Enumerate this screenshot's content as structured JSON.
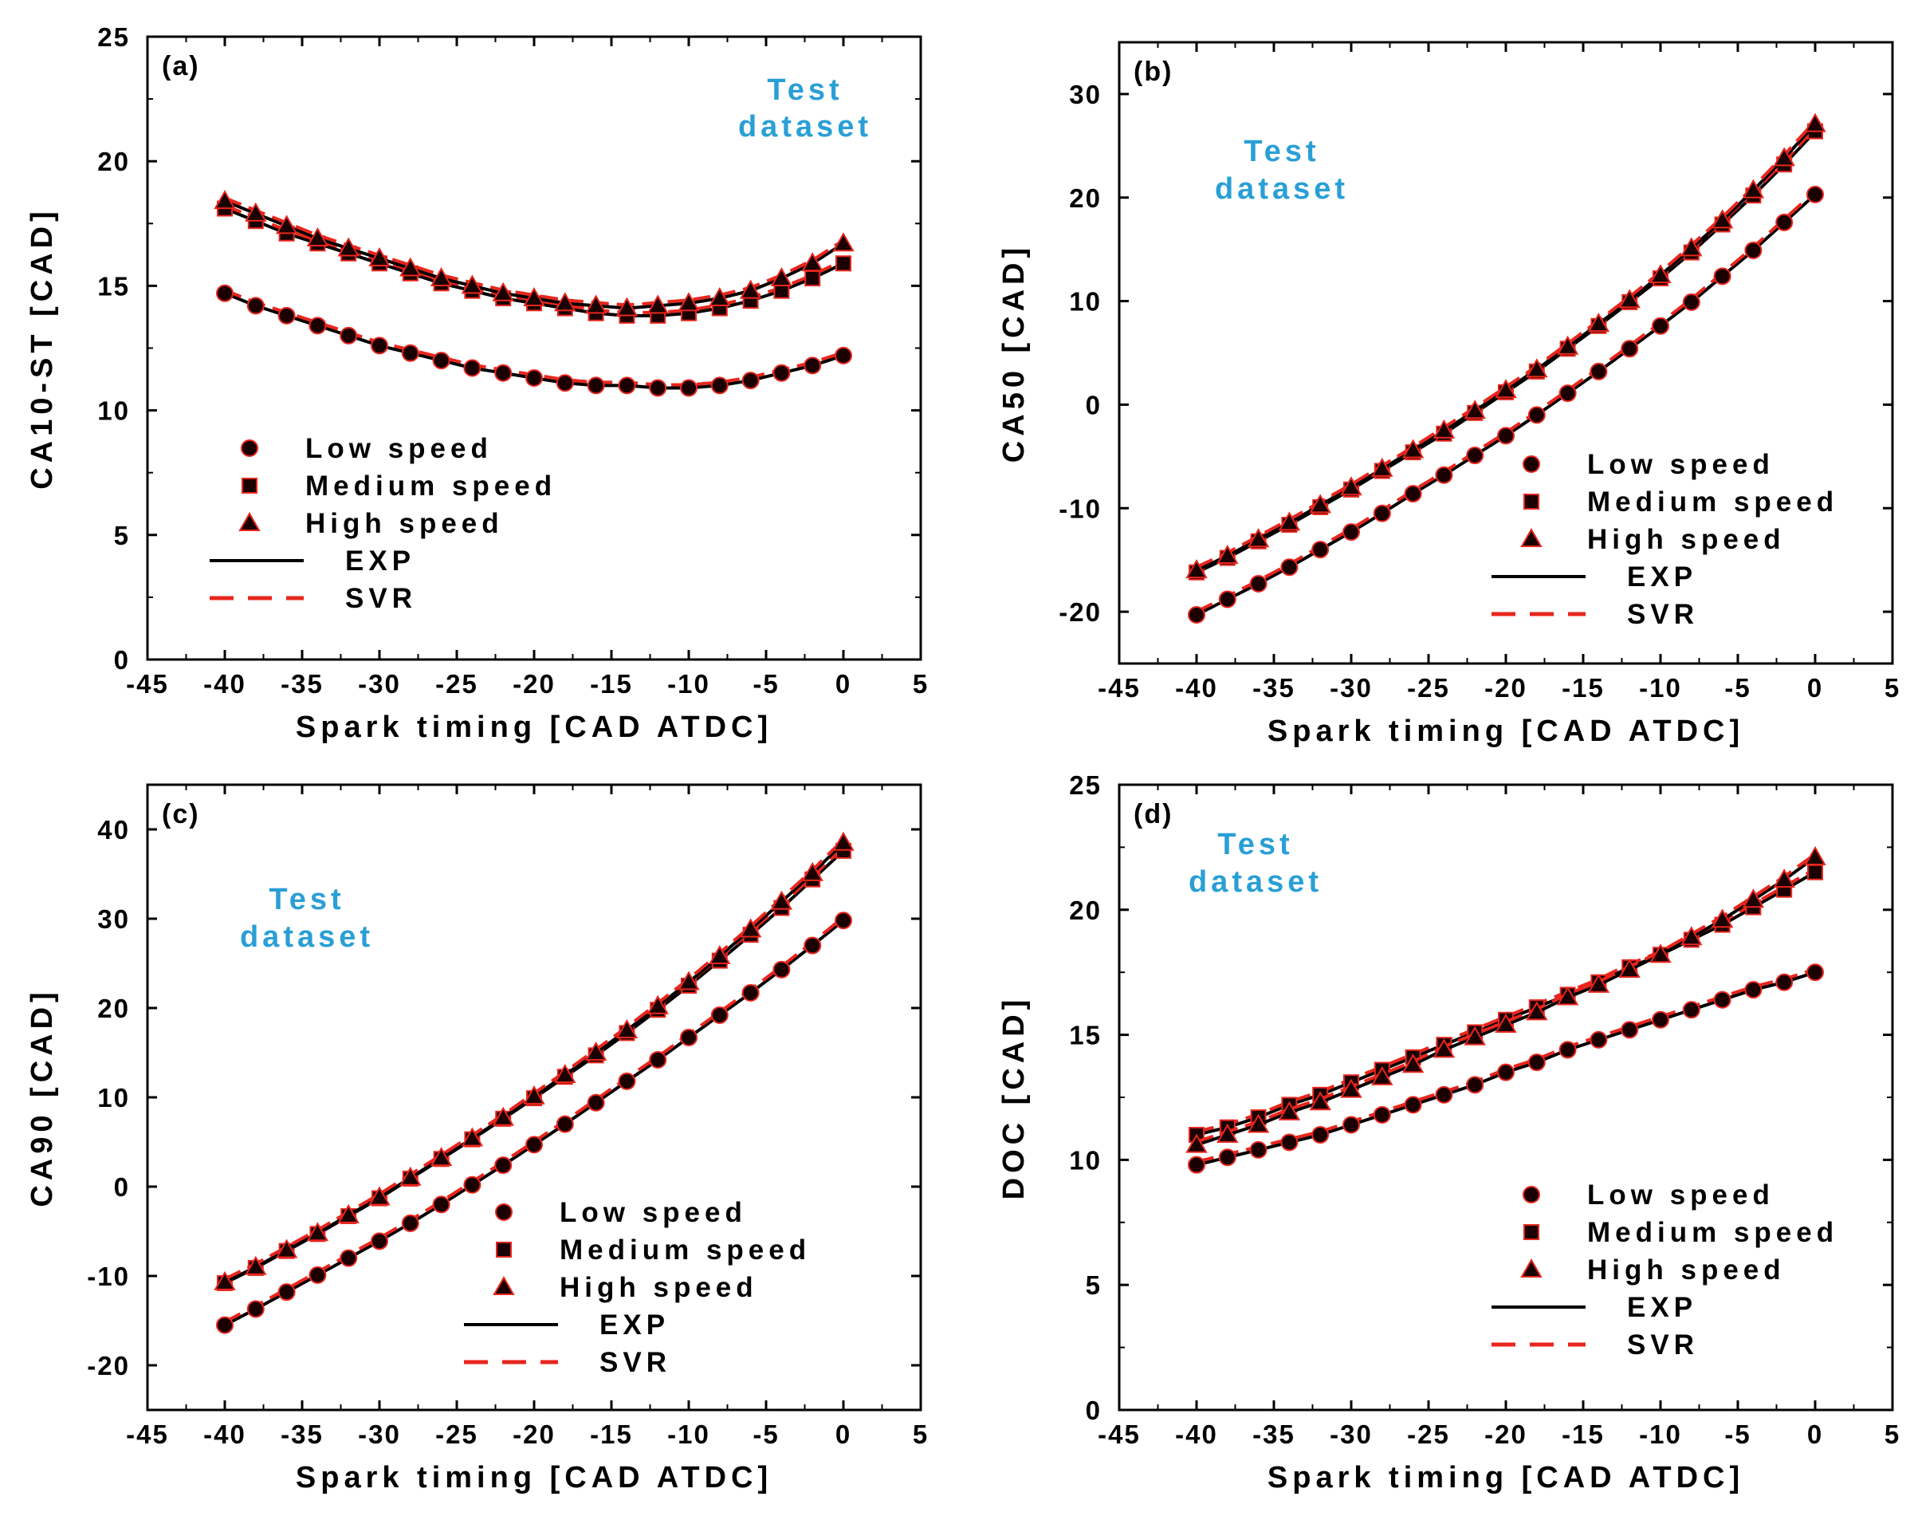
{
  "figure": {
    "legend_entries": [
      "Low speed",
      "Medium speed",
      "High speed",
      "EXP",
      "SVR"
    ],
    "colors": {
      "exp": "#000000",
      "svr": "#e8261d",
      "annotation": "#2a9fd6",
      "marker_fill": "#1a0000"
    }
  },
  "chart_data": [
    {
      "id": "a",
      "type": "line",
      "panel_label": "(a)",
      "annotation": [
        "Test",
        "dataset"
      ],
      "xlabel": "Spark timing [CAD ATDC]",
      "ylabel": "CA10-ST [CAD]",
      "xlim": [
        -45,
        5
      ],
      "ylim": [
        0,
        25
      ],
      "xticks": [
        -45,
        -40,
        -35,
        -30,
        -25,
        -20,
        -15,
        -10,
        -5,
        0,
        5
      ],
      "yticks": [
        0,
        5,
        10,
        15,
        20,
        25
      ],
      "legend_position": "lower-left",
      "x": [
        -40,
        -38,
        -36,
        -34,
        -32,
        -30,
        -28,
        -26,
        -24,
        -22,
        -20,
        -18,
        -16,
        -14,
        -12,
        -10,
        -8,
        -6,
        -4,
        -2,
        0
      ],
      "series": [
        {
          "name": "Low speed",
          "marker": "circle",
          "values": [
            14.7,
            14.2,
            13.8,
            13.4,
            13.0,
            12.6,
            12.3,
            12.0,
            11.7,
            11.5,
            11.3,
            11.1,
            11.0,
            11.0,
            10.9,
            10.9,
            11.0,
            11.2,
            11.5,
            11.8,
            12.2
          ]
        },
        {
          "name": "Medium speed",
          "marker": "square",
          "values": [
            18.1,
            17.6,
            17.1,
            16.7,
            16.3,
            15.9,
            15.5,
            15.1,
            14.8,
            14.5,
            14.3,
            14.1,
            13.9,
            13.8,
            13.8,
            13.9,
            14.1,
            14.4,
            14.8,
            15.3,
            15.9
          ]
        },
        {
          "name": "High speed",
          "marker": "triangle",
          "values": [
            18.4,
            17.9,
            17.4,
            16.9,
            16.5,
            16.1,
            15.7,
            15.3,
            15.0,
            14.7,
            14.5,
            14.3,
            14.2,
            14.1,
            14.2,
            14.3,
            14.5,
            14.8,
            15.3,
            15.9,
            16.7
          ]
        }
      ]
    },
    {
      "id": "b",
      "type": "line",
      "panel_label": "(b)",
      "annotation": [
        "Test",
        "dataset"
      ],
      "xlabel": "Spark timing [CAD ATDC]",
      "ylabel": "CA50 [CAD]",
      "xlim": [
        -45,
        5
      ],
      "ylim": [
        -25,
        35
      ],
      "xticks": [
        -45,
        -40,
        -35,
        -30,
        -25,
        -20,
        -15,
        -10,
        -5,
        0,
        5
      ],
      "yticks": [
        -20,
        -10,
        0,
        10,
        20,
        30
      ],
      "legend_position": "lower-right",
      "x": [
        -40,
        -38,
        -36,
        -34,
        -32,
        -30,
        -28,
        -26,
        -24,
        -22,
        -20,
        -18,
        -16,
        -14,
        -12,
        -10,
        -8,
        -6,
        -4,
        -2,
        0
      ],
      "series": [
        {
          "name": "Low speed",
          "marker": "circle",
          "values": [
            -20.3,
            -18.8,
            -17.3,
            -15.7,
            -14.0,
            -12.3,
            -10.5,
            -8.6,
            -6.8,
            -4.9,
            -3.0,
            -1.0,
            1.1,
            3.2,
            5.4,
            7.6,
            9.9,
            12.4,
            14.9,
            17.6,
            20.3
          ]
        },
        {
          "name": "Medium speed",
          "marker": "square",
          "values": [
            -16.2,
            -14.8,
            -13.2,
            -11.6,
            -9.9,
            -8.2,
            -6.4,
            -4.6,
            -2.8,
            -0.8,
            1.2,
            3.2,
            5.4,
            7.6,
            9.9,
            12.2,
            14.7,
            17.4,
            20.2,
            23.2,
            26.4
          ]
        },
        {
          "name": "High speed",
          "marker": "triangle",
          "values": [
            -16.0,
            -14.6,
            -13.0,
            -11.4,
            -9.7,
            -8.0,
            -6.2,
            -4.4,
            -2.5,
            -0.6,
            1.4,
            3.4,
            5.6,
            7.8,
            10.1,
            12.5,
            15.1,
            17.8,
            20.7,
            23.8,
            27.1
          ]
        }
      ]
    },
    {
      "id": "c",
      "type": "line",
      "panel_label": "(c)",
      "annotation": [
        "Test",
        "dataset"
      ],
      "xlabel": "Spark timing [CAD ATDC]",
      "ylabel": "CA90 [CAD]",
      "xlim": [
        -45,
        5
      ],
      "ylim": [
        -25,
        45
      ],
      "xticks": [
        -45,
        -40,
        -35,
        -30,
        -25,
        -20,
        -15,
        -10,
        -5,
        0,
        5
      ],
      "yticks": [
        -20,
        -10,
        0,
        10,
        20,
        30,
        40
      ],
      "legend_position": "lower-right",
      "x": [
        -40,
        -38,
        -36,
        -34,
        -32,
        -30,
        -28,
        -26,
        -24,
        -22,
        -20,
        -18,
        -16,
        -14,
        -12,
        -10,
        -8,
        -6,
        -4,
        -2,
        0
      ],
      "series": [
        {
          "name": "Low speed",
          "marker": "circle",
          "values": [
            -15.5,
            -13.7,
            -11.8,
            -9.9,
            -8.0,
            -6.1,
            -4.1,
            -2.0,
            0.2,
            2.4,
            4.7,
            7.0,
            9.4,
            11.8,
            14.2,
            16.7,
            19.2,
            21.7,
            24.3,
            27.0,
            29.8
          ]
        },
        {
          "name": "Medium speed",
          "marker": "square",
          "values": [
            -10.8,
            -9.1,
            -7.2,
            -5.3,
            -3.3,
            -1.3,
            0.9,
            3.1,
            5.3,
            7.6,
            9.9,
            12.3,
            14.7,
            17.2,
            19.8,
            22.5,
            25.3,
            28.2,
            31.2,
            34.4,
            37.6
          ]
        },
        {
          "name": "High speed",
          "marker": "triangle",
          "values": [
            -10.7,
            -9.0,
            -7.1,
            -5.2,
            -3.2,
            -1.2,
            1.0,
            3.2,
            5.4,
            7.7,
            10.1,
            12.5,
            15.0,
            17.5,
            20.2,
            22.9,
            25.8,
            28.8,
            31.9,
            35.1,
            38.5
          ]
        }
      ]
    },
    {
      "id": "d",
      "type": "line",
      "panel_label": "(d)",
      "annotation": [
        "Test",
        "dataset"
      ],
      "xlabel": "Spark timing [CAD ATDC]",
      "ylabel": "DOC [CAD]",
      "xlim": [
        -45,
        5
      ],
      "ylim": [
        0,
        25
      ],
      "xticks": [
        -45,
        -40,
        -35,
        -30,
        -25,
        -20,
        -15,
        -10,
        -5,
        0,
        5
      ],
      "yticks": [
        0,
        5,
        10,
        15,
        20,
        25
      ],
      "legend_position": "lower-right",
      "x": [
        -40,
        -38,
        -36,
        -34,
        -32,
        -30,
        -28,
        -26,
        -24,
        -22,
        -20,
        -18,
        -16,
        -14,
        -12,
        -10,
        -8,
        -6,
        -4,
        -2,
        0
      ],
      "series": [
        {
          "name": "Low speed",
          "marker": "circle",
          "values": [
            9.8,
            10.1,
            10.4,
            10.7,
            11.0,
            11.4,
            11.8,
            12.2,
            12.6,
            13.0,
            13.5,
            13.9,
            14.4,
            14.8,
            15.2,
            15.6,
            16.0,
            16.4,
            16.8,
            17.1,
            17.5
          ]
        },
        {
          "name": "Medium speed",
          "marker": "square",
          "values": [
            11.0,
            11.3,
            11.7,
            12.2,
            12.6,
            13.1,
            13.6,
            14.1,
            14.6,
            15.1,
            15.6,
            16.1,
            16.6,
            17.1,
            17.7,
            18.2,
            18.8,
            19.4,
            20.1,
            20.8,
            21.5
          ]
        },
        {
          "name": "High speed",
          "marker": "triangle",
          "values": [
            10.6,
            11.0,
            11.4,
            11.9,
            12.3,
            12.8,
            13.3,
            13.8,
            14.4,
            14.9,
            15.4,
            15.9,
            16.5,
            17.0,
            17.6,
            18.2,
            18.9,
            19.6,
            20.4,
            21.2,
            22.1
          ]
        }
      ]
    }
  ]
}
